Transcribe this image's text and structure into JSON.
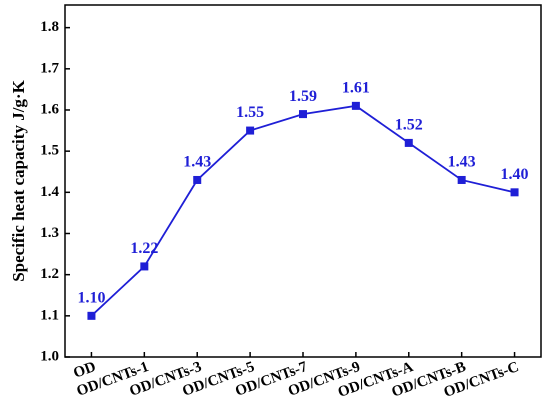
{
  "chart_data": {
    "type": "line",
    "y_label": "Specific heat capacity J/g·K",
    "categories": [
      "OD",
      "OD/CNTs-1",
      "OD/CNTs-3",
      "OD/CNTs-5",
      "OD/CNTs-7",
      "OD/CNTs-9",
      "OD/CNTs-A",
      "OD/CNTs-B",
      "OD/CNTs-C"
    ],
    "values": [
      1.1,
      1.22,
      1.43,
      1.55,
      1.59,
      1.61,
      1.52,
      1.43,
      1.4
    ],
    "value_labels": [
      "1.10",
      "1.22",
      "1.43",
      "1.55",
      "1.59",
      "1.61",
      "1.52",
      "1.43",
      "1.40"
    ],
    "color": "#1f1fd6",
    "ylim": [
      1.0,
      1.855
    ],
    "yticks": [
      {
        "value": 1.0,
        "label": "1.0"
      },
      1.1,
      1.2,
      1.3,
      1.4,
      1.5,
      1.6,
      1.7,
      1.8
    ]
  }
}
